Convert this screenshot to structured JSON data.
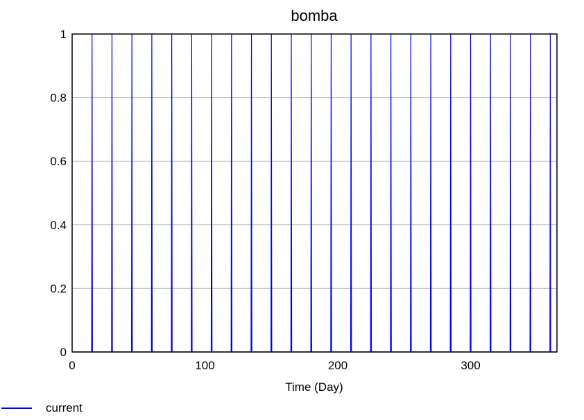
{
  "chart_data": {
    "type": "line",
    "title": "bomba",
    "xlabel": "Time (Day)",
    "ylabel": "",
    "xlim": [
      0,
      365
    ],
    "ylim": [
      0,
      1
    ],
    "xticks": [
      0,
      100,
      200,
      300
    ],
    "yticks": [
      0,
      0.2,
      0.4,
      0.6,
      0.8,
      1
    ],
    "grid": true,
    "legend_position": "bottom-left",
    "series": [
      {
        "name": "current",
        "color": "#0000ff",
        "pulse_times": [
          15,
          30,
          45,
          60,
          75,
          90,
          105,
          120,
          135,
          150,
          165,
          180,
          195,
          210,
          225,
          240,
          255,
          270,
          285,
          300,
          315,
          330,
          345,
          360
        ],
        "pulse_value": 1,
        "baseline": 0
      }
    ]
  }
}
